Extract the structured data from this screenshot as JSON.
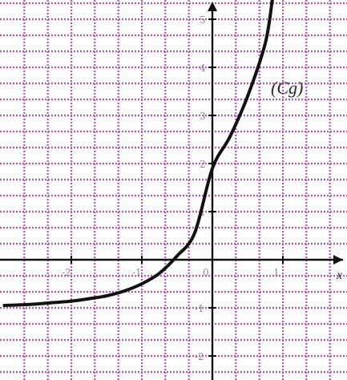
{
  "chart_data": {
    "type": "line",
    "title": "",
    "xlabel": "",
    "ylabel": "",
    "xlim": [
      -2.95,
      1.85
    ],
    "ylim": [
      -2.4,
      5.4
    ],
    "grid": true,
    "grid_step": 0.3333,
    "grid_color": "#b455b4",
    "curve_color": "#111111",
    "curve_name": "(Cg)",
    "x_axis_name": "x",
    "x_ticks": [
      {
        "value": -2,
        "label": "-2"
      },
      {
        "value": -1,
        "label": "-1"
      },
      {
        "value": 0,
        "label": "0"
      },
      {
        "value": 1,
        "label": "1"
      }
    ],
    "y_ticks": [
      {
        "value": 5,
        "label": "5"
      },
      {
        "value": 4,
        "label": "4"
      },
      {
        "value": 3,
        "label": "3"
      },
      {
        "value": 2,
        "label": "2"
      },
      {
        "value": 1,
        "label": "1"
      },
      {
        "value": -1,
        "label": "-1"
      },
      {
        "value": -2,
        "label": "-2"
      }
    ],
    "series": [
      {
        "x": [
          -2.95,
          -2.75,
          -2.5,
          -2.25,
          -2.0,
          -1.75,
          -1.5,
          -1.25,
          -1.0,
          -0.75,
          -0.5,
          -0.25,
          0.0,
          0.25,
          0.5,
          0.75,
          0.85
        ],
        "y": [
          -0.95,
          -0.94,
          -0.92,
          -0.89,
          -0.86,
          -0.81,
          -0.75,
          -0.65,
          -0.5,
          -0.28,
          0.08,
          0.56,
          1.9,
          2.56,
          3.4,
          4.5,
          5.4
        ]
      }
    ]
  }
}
